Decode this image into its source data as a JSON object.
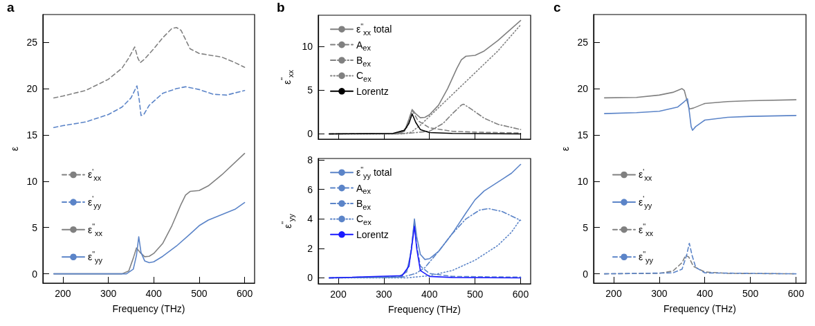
{
  "chart_data": [
    {
      "type": "line",
      "title": "a",
      "xlabel": "Frequency (THz)",
      "ylabel": "ε",
      "xlim": [
        156,
        622
      ],
      "ylim": [
        -1,
        28
      ],
      "xticks": [
        200,
        300,
        400,
        500,
        600
      ],
      "yticks": [
        0,
        5,
        10,
        15,
        20,
        25
      ],
      "grid": false,
      "legend": "left",
      "marker": "none",
      "series": [
        {
          "name": "ε$^{'}$$_{xx}$",
          "color": "#808080",
          "line_style": "dashed",
          "x": [
            180,
            200,
            250,
            300,
            330,
            345,
            358,
            365,
            370,
            380,
            400,
            420,
            440,
            450,
            460,
            470,
            480,
            500,
            550,
            575,
            600
          ],
          "values": [
            19.0,
            19.2,
            19.8,
            21.0,
            22.2,
            23.3,
            24.5,
            23.3,
            22.8,
            23.2,
            24.3,
            25.5,
            26.5,
            26.6,
            26.3,
            25.3,
            24.3,
            23.8,
            23.4,
            22.9,
            22.3
          ]
        },
        {
          "name": "ε$^{'}$$_{yy}$",
          "color": "#5b84c8",
          "line_style": "dashed",
          "x": [
            180,
            200,
            250,
            300,
            330,
            350,
            360,
            363,
            368,
            372,
            378,
            390,
            420,
            450,
            470,
            500,
            530,
            560,
            600
          ],
          "values": [
            15.8,
            16.0,
            16.4,
            17.2,
            18.0,
            19.0,
            20.0,
            20.3,
            18.8,
            17.1,
            17.2,
            18.2,
            19.5,
            20.0,
            20.2,
            19.9,
            19.4,
            19.3,
            19.8
          ]
        },
        {
          "name": "ε$^{''}$$_{xx}$",
          "color": "#808080",
          "line_style": "solid",
          "x": [
            180,
            330,
            345,
            355,
            362,
            370,
            380,
            390,
            400,
            420,
            440,
            460,
            470,
            480,
            500,
            520,
            550,
            600
          ],
          "values": [
            0,
            0,
            0.3,
            1.7,
            2.8,
            2.3,
            1.85,
            1.9,
            2.2,
            3.3,
            5.2,
            7.5,
            8.5,
            8.9,
            9.0,
            9.5,
            10.7,
            13.0
          ]
        },
        {
          "name": "ε$^{''}$$_{yy}$",
          "color": "#5b84c8",
          "line_style": "solid",
          "x": [
            180,
            340,
            355,
            362,
            367,
            372,
            380,
            390,
            400,
            420,
            450,
            480,
            500,
            520,
            550,
            580,
            600
          ],
          "values": [
            0,
            0,
            0.5,
            2.0,
            4.0,
            2.3,
            1.4,
            1.2,
            1.3,
            1.9,
            3.0,
            4.3,
            5.2,
            5.8,
            6.4,
            7.0,
            7.7
          ]
        }
      ]
    },
    {
      "type": "line",
      "title": "b",
      "ylabel": "ε$^{''}$$_{xx}$",
      "xlim": [
        156,
        622
      ],
      "ylim": [
        -0.6,
        13.6
      ],
      "xticks": [
        200,
        300,
        400,
        500,
        600
      ],
      "yticks": [
        0,
        5,
        10
      ],
      "tick_labels": "y",
      "grid": false,
      "legend": "top left",
      "marker": "none",
      "series": [
        {
          "name": "ε$^{''}$$_{xx}$ total",
          "color": "#808080",
          "line_style": "solid",
          "x": [
            180,
            330,
            345,
            355,
            362,
            370,
            380,
            390,
            400,
            420,
            440,
            460,
            470,
            480,
            500,
            520,
            550,
            600
          ],
          "values": [
            0,
            0,
            0.3,
            1.7,
            2.8,
            2.3,
            1.85,
            1.9,
            2.2,
            3.3,
            5.2,
            7.5,
            8.5,
            8.9,
            9.0,
            9.5,
            10.7,
            13.0
          ]
        },
        {
          "name": "A$_{ex}$",
          "color": "#808080",
          "line_style": "dashed",
          "x": [
            180,
            330,
            350,
            362,
            375,
            400,
            450,
            500,
            600
          ],
          "values": [
            0,
            0.05,
            0.7,
            2.7,
            1.5,
            0.7,
            0.3,
            0.2,
            0.1
          ]
        },
        {
          "name": "B$_{ex}$",
          "color": "#808080",
          "line_style": "dashdot",
          "x": [
            180,
            350,
            400,
            430,
            450,
            470,
            475,
            490,
            520,
            550,
            600
          ],
          "values": [
            0,
            0.05,
            0.3,
            1.2,
            2.3,
            3.3,
            3.4,
            2.9,
            1.8,
            1.1,
            0.5
          ]
        },
        {
          "name": "C$_{ex}$",
          "color": "#808080",
          "line_style": "dotted",
          "x": [
            180,
            340,
            360,
            380,
            400,
            450,
            500,
            550,
            600
          ],
          "values": [
            0,
            0,
            0.2,
            1.0,
            2.0,
            4.5,
            7.0,
            9.5,
            12.5
          ]
        },
        {
          "name": "Lorentz",
          "color": "#000000",
          "line_style": "solid",
          "x": [
            180,
            320,
            345,
            355,
            362,
            370,
            380,
            400,
            450,
            600
          ],
          "values": [
            0,
            0.05,
            0.4,
            1.2,
            2.3,
            1.3,
            0.5,
            0.15,
            0.05,
            0
          ]
        }
      ]
    },
    {
      "type": "line",
      "xlabel": "Frequency (THz)",
      "ylabel": "ε$^{''}$$_{yy}$",
      "xlim": [
        156,
        622
      ],
      "ylim": [
        -0.4,
        8.1
      ],
      "xticks": [
        200,
        300,
        400,
        500,
        600
      ],
      "yticks": [
        0,
        2,
        4,
        6,
        8
      ],
      "grid": false,
      "legend": "top left",
      "marker": "none",
      "series": [
        {
          "name": "ε$^{''}$$_{yy}$ total",
          "color": "#5b84c8",
          "line_style": "solid",
          "x": [
            180,
            330,
            350,
            360,
            367,
            372,
            380,
            390,
            400,
            420,
            450,
            480,
            500,
            520,
            540,
            560,
            580,
            600
          ],
          "values": [
            0,
            0.05,
            0.4,
            1.8,
            4.0,
            2.8,
            1.6,
            1.25,
            1.3,
            1.8,
            3.0,
            4.4,
            5.3,
            5.9,
            6.3,
            6.7,
            7.1,
            7.7
          ]
        },
        {
          "name": "A$_{ex}$",
          "color": "#5b84c8",
          "line_style": "dashed",
          "x": [
            180,
            340,
            355,
            362,
            367,
            372,
            380,
            400,
            450,
            600
          ],
          "values": [
            0,
            0.1,
            0.8,
            2.5,
            3.8,
            2.2,
            0.8,
            0.3,
            0.1,
            0.05
          ]
        },
        {
          "name": "B$_{ex}$",
          "color": "#5b84c8",
          "line_style": "dashdot",
          "x": [
            180,
            340,
            370,
            390,
            420,
            450,
            480,
            510,
            530,
            560,
            600
          ],
          "values": [
            0,
            0.05,
            0.3,
            0.7,
            1.8,
            3.0,
            4.0,
            4.6,
            4.7,
            4.5,
            3.9
          ]
        },
        {
          "name": "C$_{ex}$",
          "color": "#5b84c8",
          "line_style": "dotted",
          "x": [
            180,
            350,
            400,
            450,
            500,
            550,
            580,
            600
          ],
          "values": [
            0,
            0,
            0.15,
            0.5,
            1.2,
            2.2,
            3.1,
            4.0
          ]
        },
        {
          "name": "Lorentz",
          "color": "#1a1aff",
          "line_style": "solid",
          "x": [
            180,
            340,
            355,
            362,
            367,
            372,
            380,
            400,
            450,
            600
          ],
          "values": [
            0,
            0.15,
            0.8,
            2.3,
            3.5,
            2.0,
            0.5,
            0.1,
            0.03,
            0
          ]
        }
      ]
    },
    {
      "type": "line",
      "title": "c",
      "xlabel": "Frequency (THz)",
      "ylabel": "ε",
      "xlim": [
        156,
        622
      ],
      "ylim": [
        -1,
        28
      ],
      "xticks": [
        200,
        300,
        400,
        500,
        600
      ],
      "yticks": [
        0,
        5,
        10,
        15,
        20,
        25
      ],
      "grid": false,
      "legend": "left",
      "marker": "none",
      "series": [
        {
          "name": "ε$^{'}$$_{xx}$",
          "color": "#808080",
          "line_style": "solid",
          "x": [
            180,
            250,
            300,
            330,
            350,
            355,
            362,
            366,
            375,
            400,
            450,
            500,
            600
          ],
          "values": [
            19.0,
            19.05,
            19.3,
            19.6,
            20.0,
            19.8,
            18.5,
            17.8,
            17.9,
            18.4,
            18.6,
            18.7,
            18.8
          ]
        },
        {
          "name": "ε$^{'}$$_{yy}$",
          "color": "#5b84c8",
          "line_style": "solid",
          "x": [
            180,
            250,
            300,
            340,
            355,
            362,
            366,
            370,
            373,
            380,
            400,
            450,
            500,
            600
          ],
          "values": [
            17.3,
            17.4,
            17.55,
            18.0,
            18.6,
            18.9,
            17.5,
            15.9,
            15.5,
            15.9,
            16.6,
            16.9,
            17.0,
            17.1
          ]
        },
        {
          "name": "ε$^{''}$$_{xx}$",
          "color": "#808080",
          "line_style": "dashed",
          "x": [
            180,
            300,
            330,
            350,
            358,
            365,
            375,
            400,
            450,
            600
          ],
          "values": [
            0,
            0.05,
            0.3,
            1.2,
            2.0,
            1.8,
            0.8,
            0.2,
            0.05,
            0
          ]
        },
        {
          "name": "ε$^{''}$$_{yy}$",
          "color": "#5b84c8",
          "line_style": "dashed",
          "x": [
            180,
            330,
            350,
            360,
            366,
            372,
            380,
            400,
            600
          ],
          "values": [
            0,
            0.1,
            0.5,
            2.0,
            3.3,
            2.0,
            0.7,
            0.1,
            0
          ]
        }
      ]
    }
  ]
}
